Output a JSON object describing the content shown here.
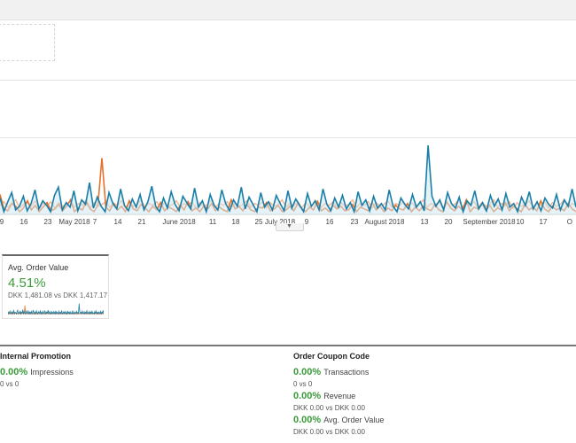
{
  "timeline": {
    "x_labels": [
      "9",
      "16",
      "23",
      "May 2018",
      "7",
      "14",
      "21",
      "June 2018",
      "11",
      "18",
      "25",
      "July 2018",
      "9",
      "16",
      "23",
      "August 2018",
      "13",
      "20",
      "September 2018",
      "10",
      "17",
      "O"
    ]
  },
  "chart_data": {
    "type": "line",
    "series": [
      {
        "color": "#1a7fa8",
        "values": [
          18,
          3,
          14,
          24,
          5,
          9,
          20,
          4,
          12,
          27,
          6,
          15,
          10,
          3,
          21,
          30,
          5,
          13,
          8,
          26,
          4,
          16,
          11,
          35,
          7,
          19,
          9,
          3,
          24,
          12,
          6,
          28,
          10,
          4,
          17,
          8,
          22,
          5,
          14,
          31,
          9,
          3,
          18,
          7,
          25,
          11,
          4,
          20,
          13,
          6,
          29,
          8,
          15,
          3,
          22,
          10,
          5,
          27,
          12,
          4,
          16,
          9,
          30,
          6,
          19,
          11,
          3,
          24,
          8,
          14,
          5,
          21,
          12,
          4,
          26,
          7,
          17,
          10,
          3,
          23,
          9,
          15,
          5,
          28,
          11,
          4,
          18,
          8,
          21,
          6,
          13,
          3,
          25,
          10,
          16,
          4,
          20,
          7,
          12,
          5,
          27,
          9,
          3,
          18,
          11,
          6,
          22,
          8,
          14,
          4,
          76,
          20,
          9,
          16,
          5,
          24,
          12,
          7,
          19,
          3,
          15,
          10,
          26,
          6,
          13,
          4,
          21,
          9,
          17,
          5,
          23,
          8,
          12,
          3,
          19,
          10,
          25,
          6,
          14,
          4,
          18,
          11,
          7,
          22,
          5,
          16,
          9,
          28,
          8
        ]
      },
      {
        "color": "#e8712c",
        "values": [
          22,
          6,
          4,
          12,
          9,
          3,
          7,
          15,
          5,
          10,
          3,
          8,
          13,
          4,
          6,
          11,
          4,
          9,
          16,
          3,
          7,
          5,
          14,
          6,
          3,
          10,
          62,
          8,
          4,
          12,
          5,
          9,
          3,
          15,
          6,
          4,
          11,
          7,
          3,
          9,
          5,
          13,
          4,
          8,
          6,
          3,
          10,
          5,
          14,
          4,
          7,
          3,
          9,
          6,
          12,
          4,
          8,
          5,
          3,
          16,
          6,
          9,
          4,
          11,
          5,
          3,
          8,
          7,
          13,
          4,
          6,
          10,
          3,
          5,
          9,
          4,
          12,
          6,
          3,
          8,
          5,
          14,
          4,
          7,
          3,
          10,
          6,
          9,
          4,
          5,
          11,
          3,
          8,
          6,
          4,
          13,
          5,
          9,
          3,
          7,
          4,
          10,
          6,
          5,
          12,
          3,
          8,
          4,
          9,
          6,
          4,
          11,
          5,
          3,
          14,
          7,
          4,
          9,
          5,
          16,
          3,
          8,
          6,
          12,
          4,
          10,
          3,
          7,
          5,
          13,
          4,
          9,
          6,
          3,
          11,
          5,
          8,
          4,
          15,
          6,
          3,
          9,
          5,
          7,
          4,
          12,
          6,
          3
        ]
      },
      {
        "color": "#f5b996",
        "values": [
          10,
          14,
          8,
          12,
          16,
          7,
          11,
          13,
          9,
          15,
          6,
          12,
          10,
          14,
          7,
          13,
          9,
          11,
          15,
          8,
          12,
          10,
          16,
          7,
          13,
          9,
          11,
          14,
          8,
          12,
          10,
          15,
          7,
          13,
          9,
          11,
          16,
          8,
          12,
          10,
          14,
          7,
          13,
          9,
          11,
          15,
          8,
          12,
          10,
          14,
          7,
          13,
          9,
          11,
          16,
          8,
          12,
          10,
          14,
          7,
          13,
          9,
          11,
          15,
          8,
          12,
          10,
          14,
          7,
          13,
          9,
          11,
          16,
          8,
          12,
          10,
          14,
          7,
          13,
          9,
          11,
          15,
          8,
          12,
          10,
          14,
          7,
          13,
          9,
          11,
          16,
          8,
          12,
          10,
          14,
          7,
          13,
          9,
          11,
          15,
          8,
          12,
          10,
          14,
          7,
          13,
          9,
          11,
          16,
          8,
          12,
          10,
          14,
          7,
          13,
          9,
          11,
          15,
          8,
          12,
          10,
          14,
          7,
          13,
          9,
          11,
          16,
          8,
          12,
          10,
          14,
          7,
          13,
          9,
          11,
          15,
          8,
          12,
          10,
          14,
          7,
          13,
          9,
          11,
          16,
          8,
          12,
          10
        ]
      }
    ]
  },
  "tile": {
    "title": "Avg. Order Value",
    "change": "4.51%",
    "compare": "DKK 1,481.08 vs DKK 1,417.17",
    "change_color": "#3a9a3a"
  },
  "left_section": {
    "title": "Internal Promotion",
    "metrics": [
      {
        "value": "0.00%",
        "label": "Impressions",
        "compare": "0 vs 0"
      }
    ]
  },
  "right_section": {
    "title": "Order Coupon Code",
    "metrics": [
      {
        "value": "0.00%",
        "label": "Transactions",
        "compare": "0 vs 0"
      },
      {
        "value": "0.00%",
        "label": "Revenue",
        "compare": "DKK 0.00 vs DKK 0.00"
      },
      {
        "value": "0.00%",
        "label": "Avg. Order Value",
        "compare": "DKK 0.00 vs DKK 0.00"
      }
    ]
  },
  "icons": {
    "scroll_handle": "chevron-down-icon"
  }
}
